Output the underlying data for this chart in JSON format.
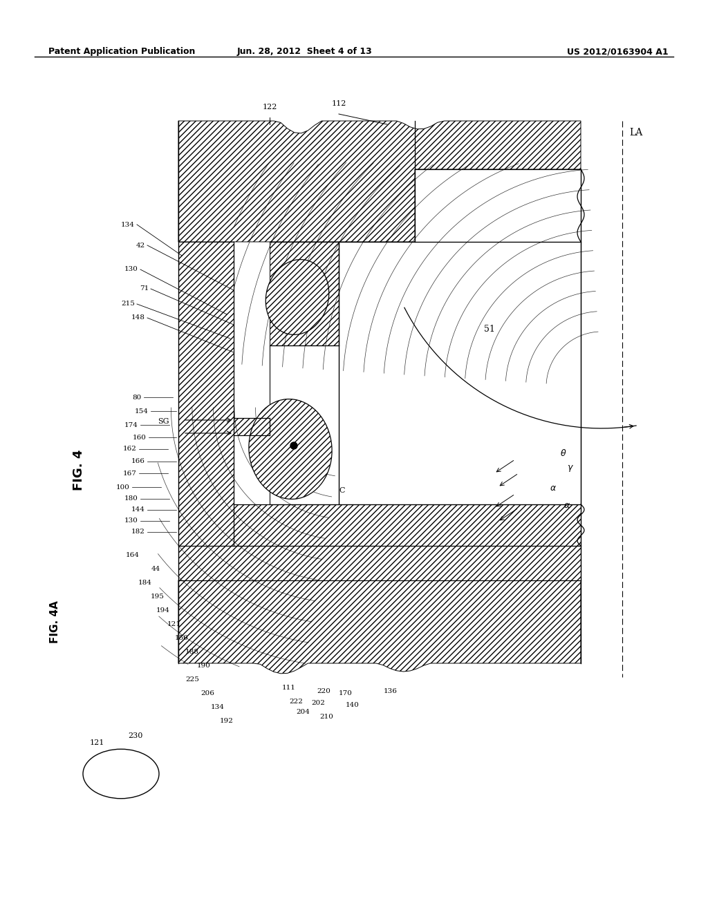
{
  "header_left": "Patent Application Publication",
  "header_center": "Jun. 28, 2012  Sheet 4 of 13",
  "header_right": "US 2012/0163904 A1",
  "fig_label_main": "FIG. 4",
  "fig_label_sub": "FIG. 4A",
  "background": "#ffffff",
  "line_color": "#000000",
  "page_width": 10.24,
  "page_height": 13.2,
  "dpi": 100
}
